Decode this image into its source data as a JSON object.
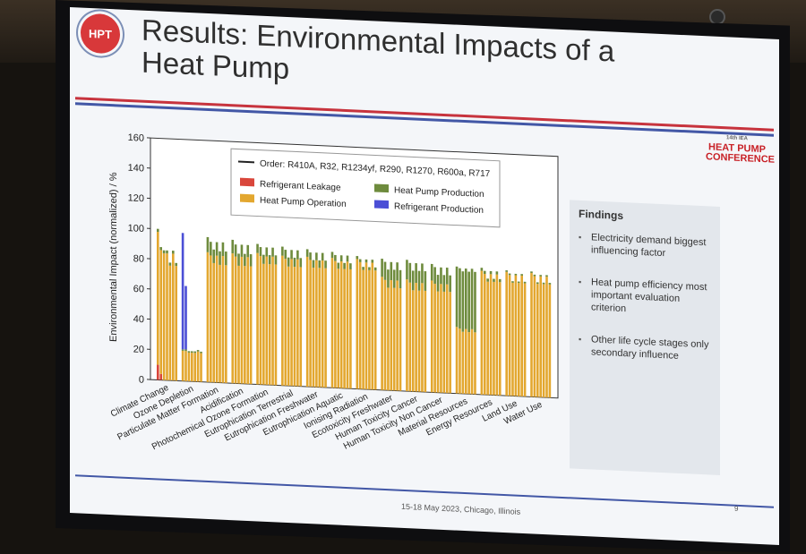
{
  "slide": {
    "logo_text": "HPT",
    "title": "Results: Environmental Impacts of a Heat Pump",
    "conference_lines": [
      "HEAT PUMP",
      "CONFERENCE"
    ],
    "conference_small": "14th IEA",
    "footer": "15-18 May 2023, Chicago, Illinois",
    "page_number": "9"
  },
  "findings": {
    "heading": "Findings",
    "items": [
      "Electricity demand biggest influencing factor",
      "Heat pump efficiency most important evaluation criterion",
      "Other life cycle stages only secondary influence"
    ]
  },
  "colors": {
    "leakage": "#d9463b",
    "operation": "#e3a72f",
    "production": "#6e8b3d",
    "refrigerant_production": "#4b4fd6",
    "accent_red": "#c7333d",
    "accent_blue": "#4257a6"
  },
  "chart_data": {
    "type": "bar",
    "stacked": true,
    "ylabel": "Environmental Impact (normalized) / %",
    "ylim": [
      0,
      160
    ],
    "yticks": [
      0,
      20,
      40,
      60,
      80,
      100,
      120,
      140,
      160
    ],
    "order_note": "Order: R410A, R32, R1234yf, R290, R1270, R600a, R717",
    "legend": {
      "placement": "top",
      "entries": [
        "Refrigerant Leakage",
        "Heat Pump Production",
        "Heat Pump Operation",
        "Refrigerant Production"
      ]
    },
    "refrigerants": [
      "R410A",
      "R32",
      "R1234yf",
      "R290",
      "R1270",
      "R600a",
      "R717"
    ],
    "categories": [
      "Climate Change",
      "Ozone Depletion",
      "Particulate Matter Formation",
      "Acidification",
      "Photochemical Ozone Formation",
      "Eutrophication Terrestrial",
      "Eutrophication Freshwater",
      "Eutrophication Aquatic",
      "Ionising Radiation",
      "Ecotoxicity Freshwater",
      "Human Toxicity Cancer",
      "Human Toxicity Non Cancer",
      "Material Resources",
      "Energy Resources",
      "Land Use",
      "Water Use"
    ],
    "series_names": [
      "Refrigerant Leakage",
      "Heat Pump Operation",
      "Heat Pump Production",
      "Refrigerant Production"
    ],
    "groups": [
      {
        "category": "Climate Change",
        "bars": [
          [
            10,
            88,
            2,
            0
          ],
          [
            4,
            82,
            2,
            0
          ],
          [
            0,
            84,
            2,
            0
          ],
          [
            0,
            84,
            2,
            0
          ],
          [
            0,
            76,
            2,
            0
          ],
          [
            0,
            84,
            2,
            0
          ],
          [
            0,
            76,
            2,
            0
          ]
        ]
      },
      {
        "category": "Ozone Depletion",
        "bars": [
          [
            0,
            20,
            1,
            77
          ],
          [
            0,
            20,
            1,
            42
          ],
          [
            0,
            19,
            1,
            0
          ],
          [
            0,
            19,
            1,
            0
          ],
          [
            0,
            19,
            1,
            0
          ],
          [
            0,
            20,
            1,
            0
          ],
          [
            0,
            19,
            1,
            0
          ]
        ]
      },
      {
        "category": "Particulate Matter Formation",
        "bars": [
          [
            0,
            86,
            10,
            0
          ],
          [
            0,
            84,
            9,
            0
          ],
          [
            0,
            79,
            9,
            0
          ],
          [
            0,
            84,
            9,
            0
          ],
          [
            0,
            78,
            9,
            0
          ],
          [
            0,
            84,
            9,
            0
          ],
          [
            0,
            78,
            9,
            0
          ]
        ]
      },
      {
        "category": "Acidification",
        "bars": [
          [
            0,
            86,
            9,
            0
          ],
          [
            0,
            84,
            8,
            0
          ],
          [
            0,
            78,
            8,
            0
          ],
          [
            0,
            84,
            8,
            0
          ],
          [
            0,
            78,
            8,
            0
          ],
          [
            0,
            84,
            8,
            0
          ],
          [
            0,
            78,
            8,
            0
          ]
        ]
      },
      {
        "category": "Photochemical Ozone Formation",
        "bars": [
          [
            0,
            87,
            6,
            0
          ],
          [
            0,
            85,
            6,
            0
          ],
          [
            0,
            80,
            6,
            0
          ],
          [
            0,
            85,
            6,
            0
          ],
          [
            0,
            80,
            6,
            0
          ],
          [
            0,
            85,
            6,
            0
          ],
          [
            0,
            80,
            6,
            0
          ]
        ]
      },
      {
        "category": "Eutrophication Terrestrial",
        "bars": [
          [
            0,
            86,
            6,
            0
          ],
          [
            0,
            84,
            6,
            0
          ],
          [
            0,
            79,
            6,
            0
          ],
          [
            0,
            84,
            6,
            0
          ],
          [
            0,
            79,
            6,
            0
          ],
          [
            0,
            84,
            6,
            0
          ],
          [
            0,
            79,
            6,
            0
          ]
        ]
      },
      {
        "category": "Eutrophication Freshwater",
        "bars": [
          [
            0,
            86,
            5,
            0
          ],
          [
            0,
            84,
            5,
            0
          ],
          [
            0,
            79,
            5,
            0
          ],
          [
            0,
            84,
            5,
            0
          ],
          [
            0,
            79,
            5,
            0
          ],
          [
            0,
            84,
            5,
            0
          ],
          [
            0,
            79,
            5,
            0
          ]
        ]
      },
      {
        "category": "Eutrophication Aquatic",
        "bars": [
          [
            0,
            86,
            4,
            0
          ],
          [
            0,
            84,
            4,
            0
          ],
          [
            0,
            79,
            4,
            0
          ],
          [
            0,
            84,
            4,
            0
          ],
          [
            0,
            79,
            4,
            0
          ],
          [
            0,
            84,
            4,
            0
          ],
          [
            0,
            79,
            4,
            0
          ]
        ]
      },
      {
        "category": "Ionising Radiation",
        "bars": [
          [
            0,
            86,
            2,
            0
          ],
          [
            0,
            84,
            2,
            0
          ],
          [
            0,
            79,
            2,
            0
          ],
          [
            0,
            84,
            2,
            0
          ],
          [
            0,
            79,
            2,
            0
          ],
          [
            0,
            84,
            2,
            0
          ],
          [
            0,
            79,
            2,
            0
          ]
        ]
      },
      {
        "category": "Ecotoxicity Freshwater",
        "bars": [
          [
            0,
            75,
            12,
            0
          ],
          [
            0,
            73,
            12,
            0
          ],
          [
            0,
            68,
            12,
            0
          ],
          [
            0,
            73,
            12,
            0
          ],
          [
            0,
            68,
            12,
            0
          ],
          [
            0,
            73,
            12,
            0
          ],
          [
            0,
            68,
            12,
            0
          ]
        ]
      },
      {
        "category": "Human Toxicity Cancer",
        "bars": [
          [
            0,
            74,
            13,
            0
          ],
          [
            0,
            72,
            13,
            0
          ],
          [
            0,
            67,
            13,
            0
          ],
          [
            0,
            72,
            13,
            0
          ],
          [
            0,
            67,
            13,
            0
          ],
          [
            0,
            72,
            13,
            0
          ],
          [
            0,
            67,
            13,
            0
          ]
        ]
      },
      {
        "category": "Human Toxicity Non Cancer",
        "bars": [
          [
            0,
            74,
            11,
            0
          ],
          [
            0,
            72,
            11,
            0
          ],
          [
            0,
            67,
            11,
            0
          ],
          [
            0,
            72,
            11,
            0
          ],
          [
            0,
            67,
            11,
            0
          ],
          [
            0,
            72,
            11,
            0
          ],
          [
            0,
            67,
            11,
            0
          ]
        ]
      },
      {
        "category": "Material Resources",
        "bars": [
          [
            0,
            44,
            40,
            0
          ],
          [
            0,
            43,
            40,
            0
          ],
          [
            0,
            41,
            40,
            0
          ],
          [
            0,
            43,
            40,
            0
          ],
          [
            0,
            41,
            40,
            0
          ],
          [
            0,
            43,
            40,
            0
          ],
          [
            0,
            41,
            40,
            0
          ]
        ]
      },
      {
        "category": "Energy Resources",
        "bars": [
          [
            0,
            82,
            2,
            0
          ],
          [
            0,
            80,
            2,
            0
          ],
          [
            0,
            75,
            2,
            0
          ],
          [
            0,
            80,
            2,
            0
          ],
          [
            0,
            75,
            2,
            0
          ],
          [
            0,
            80,
            2,
            0
          ],
          [
            0,
            75,
            2,
            0
          ]
        ]
      },
      {
        "category": "Land Use",
        "bars": [
          [
            0,
            82,
            1,
            0
          ],
          [
            0,
            80,
            1,
            0
          ],
          [
            0,
            75,
            1,
            0
          ],
          [
            0,
            80,
            1,
            0
          ],
          [
            0,
            75,
            1,
            0
          ],
          [
            0,
            80,
            1,
            0
          ],
          [
            0,
            75,
            1,
            0
          ]
        ]
      },
      {
        "category": "Water Use",
        "bars": [
          [
            0,
            82,
            1,
            0
          ],
          [
            0,
            80,
            1,
            0
          ],
          [
            0,
            75,
            1,
            0
          ],
          [
            0,
            80,
            1,
            0
          ],
          [
            0,
            75,
            1,
            0
          ],
          [
            0,
            80,
            1,
            0
          ],
          [
            0,
            75,
            1,
            0
          ]
        ]
      }
    ]
  }
}
